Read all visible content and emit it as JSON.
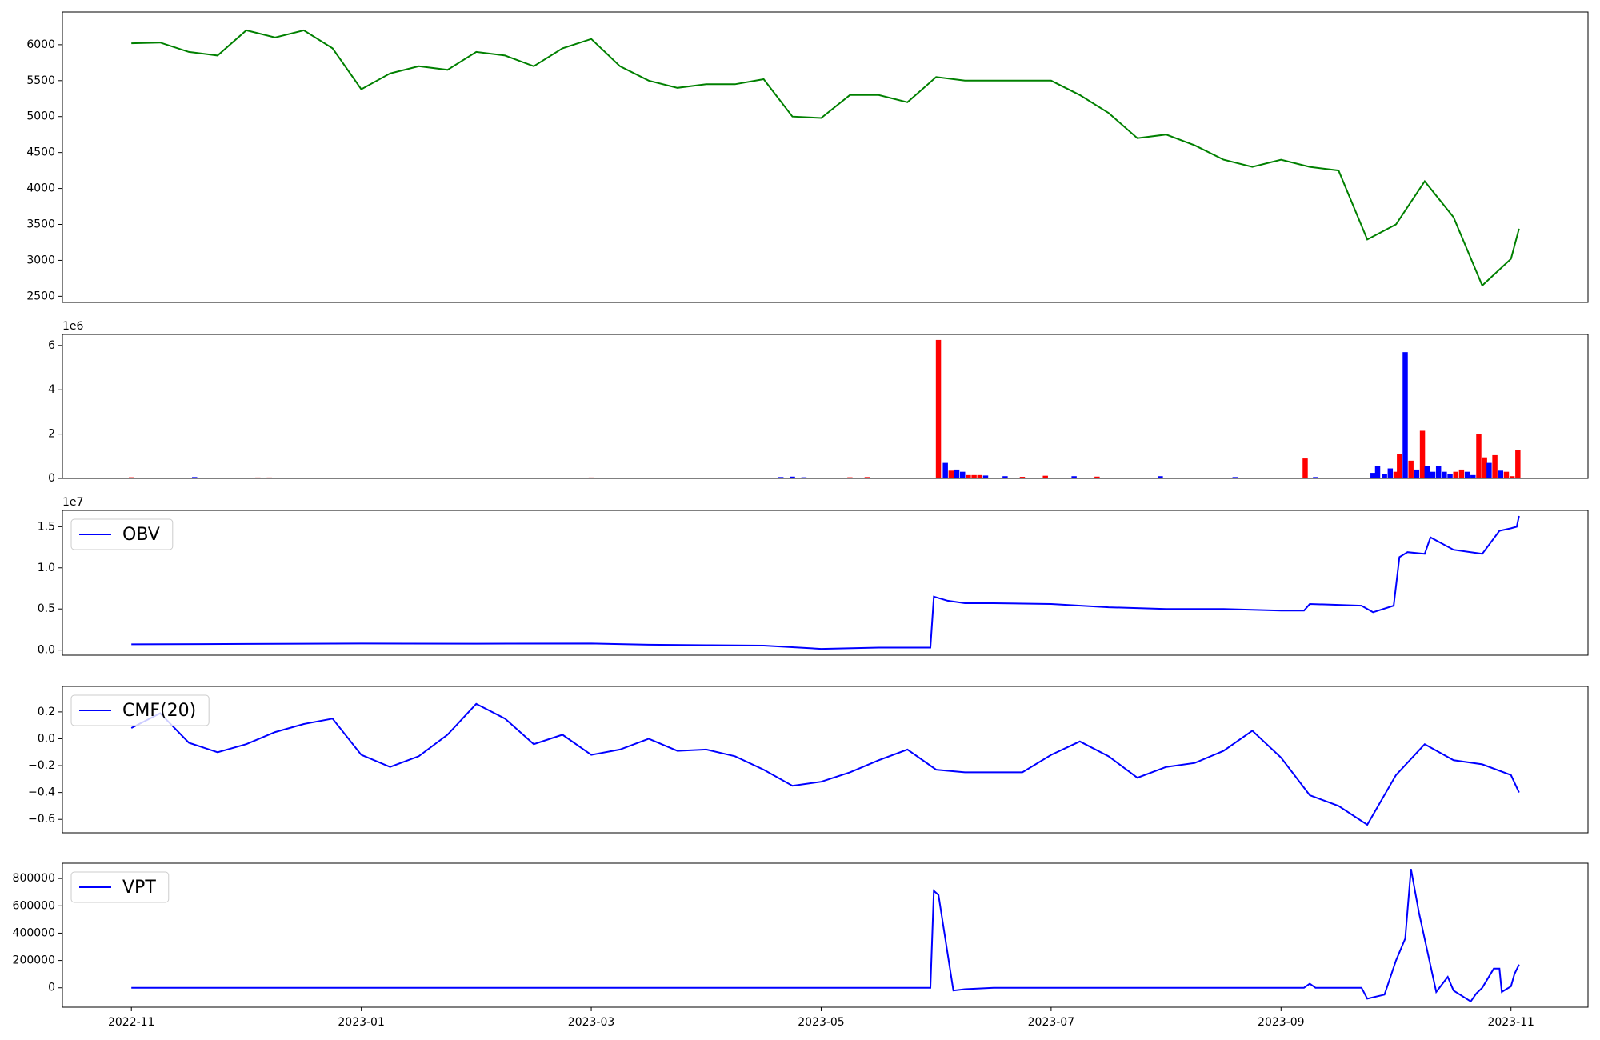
{
  "chart_data": [
    {
      "type": "line",
      "color": "#008000",
      "x": [
        0,
        0.25,
        0.5,
        0.75,
        1,
        1.25,
        1.5,
        1.75,
        2,
        2.25,
        2.5,
        2.75,
        3,
        3.25,
        3.5,
        3.75,
        4,
        4.25,
        4.5,
        4.75,
        5,
        5.25,
        5.5,
        5.75,
        6,
        6.25,
        6.5,
        6.75,
        7,
        7.25,
        7.5,
        7.75,
        8,
        8.25,
        8.5,
        8.75,
        9,
        9.25,
        9.5,
        9.75,
        10,
        10.25,
        10.5,
        10.75,
        11,
        11.25,
        11.5,
        11.75,
        12,
        12.07
      ],
      "values": [
        6020,
        6030,
        5900,
        5850,
        6200,
        6100,
        6200,
        5950,
        5380,
        5600,
        5700,
        5650,
        5900,
        5850,
        5700,
        5950,
        6080,
        5700,
        5500,
        5400,
        5450,
        5450,
        5520,
        5000,
        4980,
        5300,
        5300,
        5200,
        5550,
        5500,
        5500,
        5500,
        5500,
        5300,
        5050,
        4700,
        4750,
        4600,
        4400,
        4300,
        4400,
        4300,
        4250,
        3290,
        3500,
        4100,
        3600,
        2650,
        3020,
        3440
      ],
      "xlim": [
        -0.6,
        12.67
      ],
      "ylim": [
        2415,
        6455
      ],
      "yticks": [
        2500,
        3000,
        3500,
        4000,
        4500,
        5000,
        5500,
        6000
      ]
    },
    {
      "type": "bar",
      "x": [
        0,
        0.05,
        0.55,
        1.1,
        1.2,
        4,
        4.45,
        5.3,
        5.65,
        5.75,
        5.85,
        6.25,
        6.4,
        7.02,
        7.08,
        7.13,
        7.18,
        7.23,
        7.28,
        7.33,
        7.38,
        7.43,
        7.6,
        7.75,
        7.95,
        8.2,
        8.4,
        8.95,
        9.6,
        10.21,
        10.3,
        10.8,
        10.84,
        10.9,
        10.95,
        11,
        11.03,
        11.08,
        11.13,
        11.18,
        11.23,
        11.27,
        11.32,
        11.37,
        11.42,
        11.47,
        11.52,
        11.57,
        11.62,
        11.67,
        11.72,
        11.77,
        11.81,
        11.86,
        11.91,
        11.96,
        12.01,
        12.06
      ],
      "values": [
        50000,
        30000,
        60000,
        40000,
        40000,
        40000,
        30000,
        30000,
        60000,
        80000,
        50000,
        50000,
        60000,
        6250000,
        700000,
        350000,
        400000,
        300000,
        150000,
        150000,
        150000,
        130000,
        100000,
        70000,
        120000,
        100000,
        80000,
        100000,
        60000,
        900000,
        60000,
        250000,
        550000,
        200000,
        450000,
        300000,
        1100000,
        5700000,
        800000,
        400000,
        2150000,
        550000,
        300000,
        550000,
        300000,
        200000,
        300000,
        400000,
        300000,
        150000,
        2000000,
        950000,
        700000,
        1050000,
        350000,
        300000,
        100000,
        1300000
      ],
      "colors": [
        "#ff0000",
        "#ff0000",
        "#0000ff",
        "#ff0000",
        "#ff0000",
        "#ff0000",
        "#0000ff",
        "#ff0000",
        "#0000ff",
        "#0000ff",
        "#0000ff",
        "#ff0000",
        "#ff0000",
        "#ff0000",
        "#0000ff",
        "#ff0000",
        "#0000ff",
        "#0000ff",
        "#ff0000",
        "#ff0000",
        "#ff0000",
        "#0000ff",
        "#0000ff",
        "#ff0000",
        "#ff0000",
        "#0000ff",
        "#ff0000",
        "#0000ff",
        "#0000ff",
        "#ff0000",
        "#0000ff",
        "#0000ff",
        "#0000ff",
        "#0000ff",
        "#0000ff",
        "#ff0000",
        "#ff0000",
        "#0000ff",
        "#ff0000",
        "#0000ff",
        "#ff0000",
        "#0000ff",
        "#0000ff",
        "#0000ff",
        "#0000ff",
        "#0000ff",
        "#ff0000",
        "#ff0000",
        "#0000ff",
        "#0000ff",
        "#ff0000",
        "#ff0000",
        "#0000ff",
        "#ff0000",
        "#0000ff",
        "#ff0000",
        "#ff0000",
        "#ff0000"
      ],
      "xlim": [
        -0.6,
        12.67
      ],
      "ylim": [
        0,
        6500000
      ],
      "offset_text": "1e6",
      "yticks": [
        0,
        {
          "value": 2000000,
          "label": "2"
        },
        {
          "value": 4000000,
          "label": "4"
        },
        {
          "value": 6000000,
          "label": "6"
        }
      ]
    },
    {
      "type": "line",
      "legend": "upper left",
      "x": [
        0,
        1,
        2,
        3,
        4,
        4.5,
        5,
        5.5,
        6,
        6.5,
        6.95,
        6.98,
        7.1,
        7.25,
        7.5,
        8,
        8.5,
        9,
        9.5,
        10,
        10.2,
        10.25,
        10.5,
        10.7,
        10.8,
        10.98,
        11.03,
        11.1,
        11.25,
        11.3,
        11.5,
        11.75,
        11.9,
        12,
        12.05,
        12.07
      ],
      "series": [
        {
          "name": "OBV",
          "color": "#0000ff",
          "values": [
            700000,
            750000,
            800000,
            780000,
            800000,
            650000,
            600000,
            550000,
            150000,
            300000,
            300000,
            6500000,
            6000000,
            5700000,
            5700000,
            5600000,
            5200000,
            5000000,
            5000000,
            4800000,
            4800000,
            5600000,
            5500000,
            5400000,
            4600000,
            5400000,
            11300000,
            11900000,
            11700000,
            13700000,
            12200000,
            11700000,
            14500000,
            14800000,
            15000000,
            16300000
          ]
        }
      ],
      "xlim": [
        -0.6,
        12.67
      ],
      "ylim": [
        -620000,
        16980000
      ],
      "offset_text": "1e7",
      "yticks": [
        {
          "value": 0,
          "label": "0.0"
        },
        {
          "value": 5000000,
          "label": "0.5"
        },
        {
          "value": 10000000,
          "label": "1.0"
        },
        {
          "value": 15000000,
          "label": "1.5"
        }
      ]
    },
    {
      "type": "line",
      "legend": "upper left",
      "x": [
        0,
        0.25,
        0.5,
        0.75,
        1,
        1.25,
        1.5,
        1.75,
        2,
        2.25,
        2.5,
        2.75,
        3,
        3.25,
        3.5,
        3.75,
        4,
        4.25,
        4.5,
        4.75,
        5,
        5.25,
        5.5,
        5.75,
        6,
        6.25,
        6.5,
        6.75,
        7,
        7.25,
        7.5,
        7.75,
        8,
        8.25,
        8.5,
        8.75,
        9,
        9.25,
        9.5,
        9.75,
        10,
        10.25,
        10.5,
        10.75,
        11,
        11.25,
        11.5,
        11.75,
        12,
        12.07
      ],
      "series": [
        {
          "name": "CMF(20)",
          "color": "#0000ff",
          "values": [
            0.08,
            0.19,
            -0.03,
            -0.1,
            -0.04,
            0.05,
            0.11,
            0.15,
            -0.12,
            -0.21,
            -0.13,
            0.03,
            0.26,
            0.15,
            -0.04,
            0.03,
            -0.12,
            -0.08,
            0,
            -0.09,
            -0.08,
            -0.13,
            -0.23,
            -0.35,
            -0.32,
            -0.25,
            -0.16,
            -0.08,
            -0.23,
            -0.25,
            -0.25,
            -0.25,
            -0.12,
            -0.02,
            -0.13,
            -0.29,
            -0.21,
            -0.18,
            -0.09,
            0.06,
            -0.14,
            -0.42,
            -0.5,
            -0.64,
            -0.27,
            -0.04,
            -0.16,
            -0.19,
            -0.27,
            -0.4
          ]
        }
      ],
      "xlim": [
        -0.6,
        12.67
      ],
      "ylim": [
        -0.7,
        0.39
      ],
      "yticks": [
        {
          "value": -0.6,
          "label": "−0.6"
        },
        {
          "value": -0.4,
          "label": "−0.4"
        },
        {
          "value": -0.2,
          "label": "−0.2"
        },
        {
          "value": 0,
          "label": "0.0"
        },
        0.2
      ]
    },
    {
      "type": "line",
      "legend": "upper left",
      "x": [
        0,
        1,
        2,
        3,
        4,
        5,
        6,
        6.9,
        6.95,
        6.98,
        7.02,
        7.15,
        7.25,
        7.5,
        8,
        9,
        10,
        10.2,
        10.25,
        10.3,
        10.5,
        10.7,
        10.75,
        10.9,
        11.0,
        11.08,
        11.13,
        11.2,
        11.35,
        11.45,
        11.5,
        11.65,
        11.7,
        11.75,
        11.85,
        11.9,
        11.92,
        12.0,
        12.03,
        12.07
      ],
      "series": [
        {
          "name": "VPT",
          "color": "#0000ff",
          "values": [
            0,
            0,
            0,
            0,
            0,
            0,
            0,
            0,
            0,
            710000,
            680000,
            -20000,
            -10000,
            0,
            0,
            0,
            0,
            0,
            30000,
            0,
            0,
            0,
            -80000,
            -50000,
            200000,
            360000,
            870000,
            550000,
            -30000,
            80000,
            -20000,
            -100000,
            -40000,
            0,
            140000,
            140000,
            -30000,
            10000,
            100000,
            170000
          ]
        }
      ],
      "xlim": [
        -0.6,
        12.67
      ],
      "ylim": [
        -142000,
        912000
      ],
      "yticks": [
        0,
        200000,
        400000,
        600000,
        800000
      ],
      "xticks": [
        {
          "value": 0,
          "label": "2022-11"
        },
        {
          "value": 2,
          "label": "2023-01"
        },
        {
          "value": 4,
          "label": "2023-03"
        },
        {
          "value": 6,
          "label": "2023-05"
        },
        {
          "value": 8,
          "label": "2023-07"
        },
        {
          "value": 10,
          "label": "2023-09"
        },
        {
          "value": 12,
          "label": "2023-11"
        }
      ]
    }
  ]
}
